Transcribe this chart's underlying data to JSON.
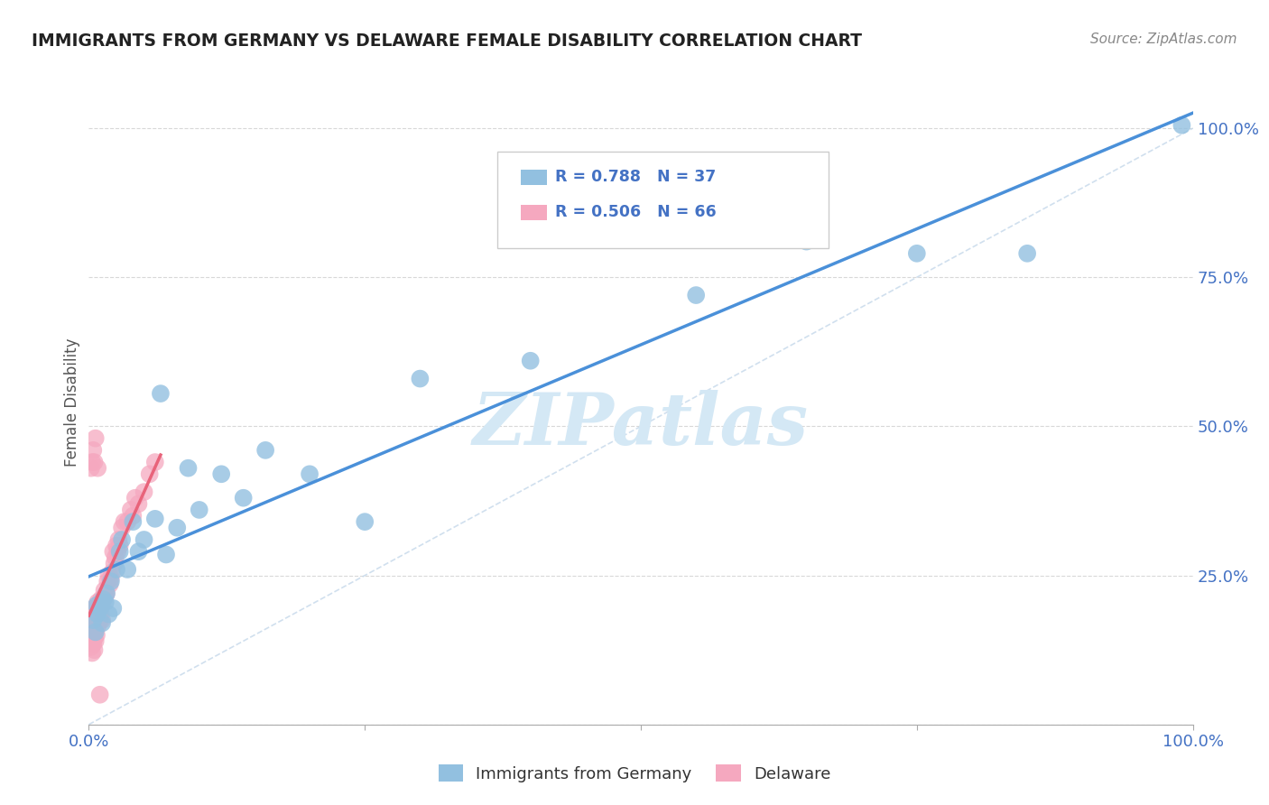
{
  "title": "IMMIGRANTS FROM GERMANY VS DELAWARE FEMALE DISABILITY CORRELATION CHART",
  "source": "Source: ZipAtlas.com",
  "ylabel": "Female Disability",
  "legend_blue_r": "0.788",
  "legend_blue_n": "37",
  "legend_pink_r": "0.506",
  "legend_pink_n": "66",
  "blue_color": "#92c0e0",
  "pink_color": "#f5a8bf",
  "blue_line_color": "#4a90d9",
  "pink_line_color": "#e8637a",
  "diag_color": "#c5d8ea",
  "title_color": "#222222",
  "axis_color": "#4472c4",
  "watermark_color": "#d4e8f5",
  "blue_scatter_x": [
    0.004,
    0.006,
    0.007,
    0.008,
    0.01,
    0.012,
    0.013,
    0.015,
    0.016,
    0.018,
    0.02,
    0.022,
    0.025,
    0.028,
    0.03,
    0.035,
    0.04,
    0.045,
    0.05,
    0.06,
    0.065,
    0.07,
    0.08,
    0.09,
    0.1,
    0.12,
    0.14,
    0.16,
    0.2,
    0.25,
    0.3,
    0.4,
    0.55,
    0.65,
    0.75,
    0.85,
    0.99
  ],
  "blue_scatter_y": [
    0.175,
    0.155,
    0.2,
    0.185,
    0.195,
    0.17,
    0.21,
    0.205,
    0.22,
    0.185,
    0.24,
    0.195,
    0.26,
    0.29,
    0.31,
    0.26,
    0.34,
    0.29,
    0.31,
    0.345,
    0.555,
    0.285,
    0.33,
    0.43,
    0.36,
    0.42,
    0.38,
    0.46,
    0.42,
    0.34,
    0.58,
    0.61,
    0.72,
    0.81,
    0.79,
    0.79,
    1.005
  ],
  "pink_scatter_x": [
    0.001,
    0.001,
    0.002,
    0.002,
    0.002,
    0.003,
    0.003,
    0.003,
    0.003,
    0.004,
    0.004,
    0.004,
    0.005,
    0.005,
    0.005,
    0.005,
    0.006,
    0.006,
    0.006,
    0.007,
    0.007,
    0.007,
    0.008,
    0.008,
    0.008,
    0.009,
    0.009,
    0.01,
    0.01,
    0.011,
    0.011,
    0.012,
    0.012,
    0.013,
    0.014,
    0.015,
    0.016,
    0.017,
    0.018,
    0.019,
    0.02,
    0.021,
    0.022,
    0.023,
    0.024,
    0.025,
    0.026,
    0.027,
    0.028,
    0.03,
    0.032,
    0.035,
    0.038,
    0.04,
    0.042,
    0.045,
    0.05,
    0.055,
    0.06,
    0.002,
    0.003,
    0.004,
    0.005,
    0.006,
    0.008,
    0.01
  ],
  "pink_scatter_y": [
    0.155,
    0.175,
    0.13,
    0.165,
    0.185,
    0.12,
    0.14,
    0.16,
    0.18,
    0.135,
    0.155,
    0.175,
    0.125,
    0.145,
    0.165,
    0.195,
    0.14,
    0.16,
    0.185,
    0.15,
    0.17,
    0.195,
    0.165,
    0.185,
    0.205,
    0.175,
    0.2,
    0.175,
    0.2,
    0.185,
    0.21,
    0.175,
    0.2,
    0.21,
    0.225,
    0.215,
    0.22,
    0.24,
    0.25,
    0.235,
    0.245,
    0.255,
    0.29,
    0.27,
    0.28,
    0.3,
    0.29,
    0.31,
    0.3,
    0.33,
    0.34,
    0.34,
    0.36,
    0.35,
    0.38,
    0.37,
    0.39,
    0.42,
    0.44,
    0.43,
    0.44,
    0.46,
    0.44,
    0.48,
    0.43,
    0.05
  ]
}
